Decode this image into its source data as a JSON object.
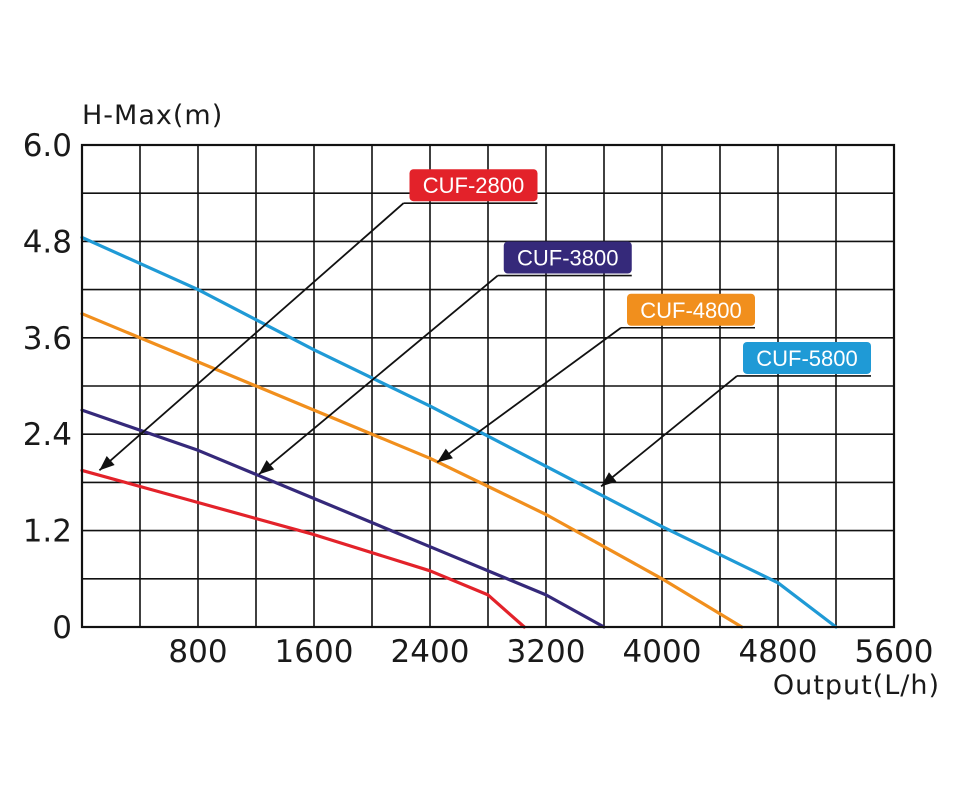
{
  "chart_data": {
    "type": "line",
    "xlabel": "Output(L/h)",
    "ylabel": "H-Max(m)",
    "xlim": [
      0,
      5600
    ],
    "ylim": [
      0,
      6.0
    ],
    "x_ticks": [
      "800",
      "1600",
      "2400",
      "3200",
      "4000",
      "4800",
      "5600"
    ],
    "y_ticks": [
      "0",
      "1.2",
      "2.4",
      "3.6",
      "4.8",
      "6.0"
    ],
    "grid": true,
    "series": [
      {
        "name": "CUF-2800",
        "color": "#e3222a",
        "points": [
          [
            0,
            1.95
          ],
          [
            800,
            1.55
          ],
          [
            1600,
            1.15
          ],
          [
            2400,
            0.7
          ],
          [
            2800,
            0.4
          ],
          [
            3050,
            0
          ]
        ],
        "label_anchor": [
          2700,
          5.3
        ],
        "arrow_target": [
          120,
          1.95
        ]
      },
      {
        "name": "CUF-3800",
        "color": "#35297a",
        "points": [
          [
            0,
            2.7
          ],
          [
            800,
            2.2
          ],
          [
            1600,
            1.6
          ],
          [
            2400,
            1.0
          ],
          [
            3200,
            0.4
          ],
          [
            3600,
            0
          ]
        ],
        "label_anchor": [
          3350,
          4.4
        ],
        "arrow_target": [
          1220,
          1.9
        ]
      },
      {
        "name": "CUF-4800",
        "color": "#f18f1d",
        "points": [
          [
            0,
            3.9
          ],
          [
            800,
            3.3
          ],
          [
            1600,
            2.7
          ],
          [
            2400,
            2.1
          ],
          [
            3200,
            1.4
          ],
          [
            4000,
            0.6
          ],
          [
            4550,
            0
          ]
        ],
        "label_anchor": [
          4200,
          3.75
        ],
        "arrow_target": [
          2450,
          2.05
        ]
      },
      {
        "name": "CUF-5800",
        "color": "#1f9ad6",
        "points": [
          [
            0,
            4.85
          ],
          [
            800,
            4.2
          ],
          [
            1600,
            3.45
          ],
          [
            2400,
            2.75
          ],
          [
            3200,
            2.0
          ],
          [
            4000,
            1.25
          ],
          [
            4800,
            0.55
          ],
          [
            5200,
            0
          ]
        ],
        "label_anchor": [
          5000,
          3.15
        ],
        "arrow_target": [
          3580,
          1.75
        ]
      }
    ]
  }
}
